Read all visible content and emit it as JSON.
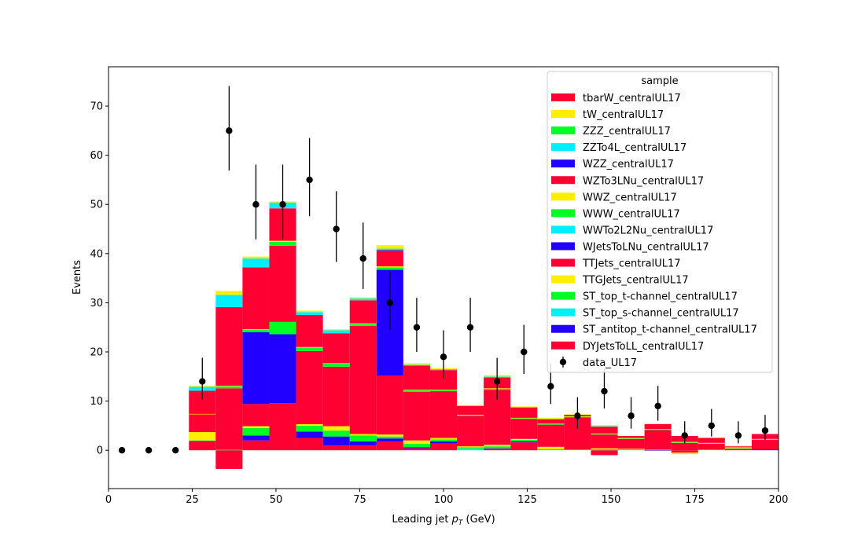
{
  "chart_data": {
    "type": "bar",
    "stacked": true,
    "xlabel": "Leading jet  p_T (GeV)",
    "xlabel_main": "Leading jet  ",
    "xlabel_p": "p",
    "xlabel_sub": "T",
    "xlabel_unit": " (GeV)",
    "ylabel": "Events",
    "xlim": [
      0,
      200
    ],
    "ylim": [
      -7.8,
      78
    ],
    "xticks": [
      0,
      25,
      50,
      75,
      100,
      125,
      150,
      175,
      200
    ],
    "yticks": [
      0,
      10,
      20,
      30,
      40,
      50,
      60,
      70
    ],
    "grid": false,
    "legend": {
      "title": "sample",
      "placement": "top-right"
    },
    "bin_edges": [
      24,
      32,
      40,
      48,
      56,
      64,
      72,
      80,
      88,
      96,
      104,
      112,
      120,
      128,
      136,
      144,
      152,
      160,
      168,
      176,
      184,
      192,
      200
    ],
    "series": [
      {
        "name": "DYJetsToLL_centralUL17",
        "color": "#ff0033",
        "values": [
          1.8,
          -3.8,
          2,
          9.6,
          2.5,
          1,
          1,
          1.8,
          0.4,
          1.4,
          0,
          0.3,
          1.6,
          0,
          0,
          -1,
          0,
          0,
          -0.5,
          0,
          0.3,
          0
        ]
      },
      {
        "name": "ST_antitop_t-channel_centralUL17",
        "color": "#2200ff",
        "values": [
          0.1,
          0,
          1,
          14,
          1.3,
          1.8,
          0.8,
          0.6,
          0.2,
          0.4,
          0,
          0.1,
          0.2,
          0,
          0,
          0,
          0,
          -0.1,
          0,
          0,
          0,
          0.1
        ]
      },
      {
        "name": "ST_top_s-channel_centralUL17",
        "color": "#00eeff",
        "values": [
          0,
          0,
          0,
          0,
          0,
          0,
          0,
          0,
          0,
          0,
          0.3,
          0,
          0,
          0,
          0,
          0,
          0,
          0,
          0,
          0,
          0,
          0
        ]
      },
      {
        "name": "ST_top_t-channel_centralUL17",
        "color": "#00ff22",
        "values": [
          0.1,
          0.1,
          1.5,
          2.5,
          1.2,
          1.2,
          1.2,
          0.4,
          0.7,
          0.4,
          0.3,
          0.4,
          0.3,
          0.2,
          0,
          0.2,
          0.2,
          0,
          0,
          0,
          0,
          0
        ]
      },
      {
        "name": "TTGJets_centralUL17",
        "color": "#ffee00",
        "values": [
          1.7,
          0,
          0.4,
          0,
          0.3,
          0.9,
          0.3,
          0.4,
          0.7,
          0.3,
          0.2,
          0.3,
          0.2,
          0.5,
          0.1,
          0.2,
          0.1,
          0.1,
          -0.3,
          0.1,
          0.1,
          0
        ]
      },
      {
        "name": "TTJets_centralUL17",
        "color": "#ff0033",
        "values": [
          3.6,
          12.5,
          4.5,
          15.5,
          14.9,
          12.1,
          22,
          12,
          9.9,
          9.5,
          6.2,
          11.2,
          4.1,
          4.5,
          6.6,
          2.8,
          2,
          4,
          1.5,
          1.2,
          0,
          2
        ]
      },
      {
        "name": "WJetsToLNu_centralUL17",
        "color": "#2200ff",
        "values": [
          0,
          0,
          14.6,
          0,
          0,
          0,
          0,
          21.5,
          0,
          0,
          0,
          0,
          0,
          0,
          0,
          0,
          0,
          0,
          0,
          0,
          0,
          0
        ]
      },
      {
        "name": "WWTo2L2Nu_centralUL17",
        "color": "#00eeff",
        "values": [
          0,
          0,
          0,
          0,
          0,
          0,
          0,
          0,
          0,
          0,
          0,
          0,
          0,
          0,
          0,
          0,
          0,
          0,
          0,
          0,
          0,
          0
        ]
      },
      {
        "name": "WWW_centralUL17",
        "color": "#00ff22",
        "values": [
          0,
          0.4,
          0.5,
          0.8,
          0.7,
          0.6,
          0.4,
          0.5,
          0.3,
          0.2,
          0.1,
          0.2,
          0.1,
          0.1,
          0.1,
          0.1,
          0.1,
          0.1,
          0.1,
          0.1,
          0.1,
          0.1
        ]
      },
      {
        "name": "WWZ_centralUL17",
        "color": "#ffee00",
        "values": [
          0.1,
          0.1,
          0.1,
          0.2,
          0.1,
          0.1,
          0.1,
          0.2,
          0.1,
          0.1,
          0.1,
          0.1,
          0.1,
          0.1,
          0.1,
          0.1,
          0.1,
          0.1,
          0.1,
          0.1,
          0.1,
          0.1
        ]
      },
      {
        "name": "WZTo3LNu_centralUL17",
        "color": "#ff0033",
        "values": [
          4.7,
          16,
          12.6,
          6.6,
          6.5,
          6.1,
          4.7,
          3.2,
          4.9,
          4,
          1.8,
          2.2,
          2.1,
          0.9,
          0.3,
          1.4,
          0.4,
          1,
          1.2,
          1,
          0.2,
          1
        ]
      },
      {
        "name": "WZZ_centralUL17",
        "color": "#2200ff",
        "values": [
          0,
          0,
          0,
          0,
          0,
          0,
          0,
          0.1,
          0,
          0,
          0,
          0,
          0,
          0,
          0,
          0,
          0,
          0,
          0,
          0,
          0,
          0
        ]
      },
      {
        "name": "ZZTo4L_centralUL17",
        "color": "#00eeff",
        "values": [
          0.8,
          2.5,
          1.8,
          1.2,
          0.6,
          0.6,
          0.4,
          0.3,
          0.2,
          0.2,
          0.1,
          0.2,
          0.1,
          0.1,
          0,
          0.1,
          0,
          0,
          0,
          0,
          0,
          0
        ]
      },
      {
        "name": "ZZZ_centralUL17",
        "color": "#00ff22",
        "values": [
          0,
          0,
          0,
          0,
          0,
          0,
          0,
          0,
          0,
          0,
          0,
          0,
          0,
          0,
          0,
          0,
          0,
          0,
          0,
          0,
          0,
          0
        ]
      },
      {
        "name": "tW_centralUL17",
        "color": "#ffee00",
        "values": [
          0.2,
          0.8,
          0.4,
          0.2,
          0.3,
          0.2,
          0.2,
          0.7,
          0.3,
          0.2,
          0.1,
          0.3,
          0.1,
          0.2,
          0.1,
          0.2,
          0,
          0.1,
          0,
          0.1,
          0.1,
          0
        ]
      },
      {
        "name": "tbarW_centralUL17",
        "color": "#ff0033",
        "values": [
          0,
          0,
          0,
          0,
          0,
          0,
          0,
          0,
          0,
          0,
          0,
          0,
          0,
          0,
          0,
          0,
          0,
          0,
          0,
          0,
          0,
          0
        ]
      }
    ],
    "data_points": {
      "name": "data_UL17",
      "x": [
        4,
        12,
        20,
        28,
        36,
        44,
        52,
        60,
        68,
        76,
        84,
        92,
        100,
        108,
        116,
        124,
        132,
        140,
        148,
        156,
        164,
        172,
        180,
        188,
        196
      ],
      "y": [
        0,
        0,
        0,
        14,
        65,
        50,
        50,
        55,
        45,
        39,
        30,
        25,
        19,
        25,
        14,
        20,
        13,
        7,
        12,
        7,
        9,
        3,
        5,
        3,
        4
      ],
      "err_low": [
        0,
        0,
        0,
        3.7,
        8.1,
        7.1,
        7.1,
        7.4,
        6.7,
        6.2,
        5.5,
        5,
        4.4,
        5,
        3.7,
        4.5,
        3.6,
        2.6,
        3.5,
        2.6,
        3,
        1.6,
        2.2,
        1.6,
        1.9
      ],
      "err_high": [
        0,
        0,
        0,
        4.8,
        9.1,
        8.1,
        8.1,
        8.5,
        7.7,
        7.3,
        6.5,
        6,
        5.4,
        6,
        4.8,
        5.5,
        4.7,
        3.8,
        4.6,
        3.8,
        4.1,
        2.9,
        3.4,
        2.9,
        3.2
      ]
    }
  }
}
